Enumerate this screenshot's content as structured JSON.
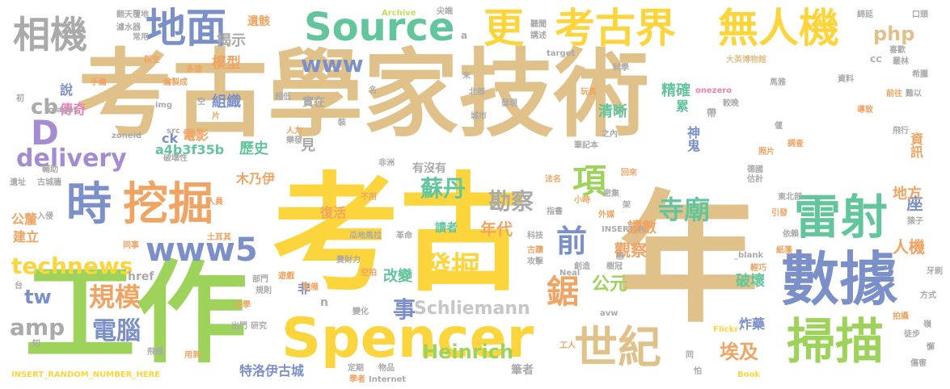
{
  "palette": {
    "tan": "#dfc189",
    "gold": "#fcd43c",
    "green": "#9ed35b",
    "blue": "#7b8fc8",
    "orange": "#f0a463",
    "teal": "#62c59c",
    "grey": "#aaaaaa",
    "pink": "#e880b6",
    "light_grey": "#c6c6c6",
    "lavender": "#a58cd2",
    "yellow_green": "#c8da5a"
  },
  "words": [
    {
      "text": "考古學家技術",
      "color": "tan",
      "size": 118
    },
    {
      "text": "考古",
      "color": "gold",
      "size": 158
    },
    {
      "text": "工作",
      "color": "green",
      "size": 138
    },
    {
      "text": "年",
      "color": "tan",
      "size": 175
    },
    {
      "text": "Spencer",
      "color": "gold",
      "size": 68
    },
    {
      "text": "數據",
      "color": "blue",
      "size": 72
    },
    {
      "text": "雷射",
      "color": "teal",
      "size": 58
    },
    {
      "text": "掃描",
      "color": "green",
      "size": 60
    },
    {
      "text": "挖掘",
      "color": "orange",
      "size": 56
    },
    {
      "text": "時",
      "color": "blue",
      "size": 56
    },
    {
      "text": "世紀",
      "color": "tan",
      "size": 54
    },
    {
      "text": "地面",
      "color": "blue",
      "size": 50
    },
    {
      "text": "Source",
      "color": "teal",
      "size": 48
    },
    {
      "text": "更",
      "color": "gold",
      "size": 50
    },
    {
      "text": "考古界",
      "color": "gold",
      "size": 50
    },
    {
      "text": "無人機",
      "color": "gold",
      "size": 50
    },
    {
      "text": "相機",
      "color": "grey",
      "size": 46
    },
    {
      "text": "php",
      "color": "tan",
      "size": 24
    },
    {
      "text": "D",
      "color": "lavender",
      "size": 42
    },
    {
      "text": "www",
      "color": "blue",
      "size": 28
    },
    {
      "text": "delivery",
      "color": "lavender",
      "size": 30
    },
    {
      "text": "cb",
      "color": "grey",
      "size": 26
    },
    {
      "text": "www5",
      "color": "blue",
      "size": 40
    },
    {
      "text": "technews",
      "color": "gold",
      "size": 28
    },
    {
      "text": "tw",
      "color": "blue",
      "size": 24
    },
    {
      "text": "amp",
      "color": "grey",
      "size": 28
    },
    {
      "text": "規模",
      "color": "orange",
      "size": 32
    },
    {
      "text": "電腦",
      "color": "blue",
      "size": 30
    },
    {
      "text": "發掘",
      "color": "gold",
      "size": 36
    },
    {
      "text": "鋸",
      "color": "orange",
      "size": 40
    },
    {
      "text": "前",
      "color": "blue",
      "size": 38
    },
    {
      "text": "項",
      "color": "green",
      "size": 42
    },
    {
      "text": "寺廟",
      "color": "teal",
      "size": 32
    },
    {
      "text": "蘇丹",
      "color": "teal",
      "size": 28
    },
    {
      "text": "勘察",
      "color": "grey",
      "size": 28
    },
    {
      "text": "公元",
      "color": "green",
      "size": 22
    },
    {
      "text": "事",
      "color": "blue",
      "size": 28
    },
    {
      "text": "埃及",
      "color": "orange",
      "size": 24
    },
    {
      "text": "Heinrich",
      "color": "green",
      "size": 24
    },
    {
      "text": "Schliemann",
      "color": "light_grey",
      "size": 22
    },
    {
      "text": "特洛伊古城",
      "color": "blue",
      "size": 16
    },
    {
      "text": "觀察",
      "color": "orange",
      "size": 20
    },
    {
      "text": "讀數",
      "color": "orange",
      "size": 18
    },
    {
      "text": "年代",
      "color": "orange",
      "size": 20
    },
    {
      "text": "改變",
      "color": "teal",
      "size": 18
    },
    {
      "text": "破壞",
      "color": "teal",
      "size": 18
    },
    {
      "text": "炸藥",
      "color": "blue",
      "size": 16
    },
    {
      "text": "人機",
      "color": "orange",
      "size": 20
    },
    {
      "text": "座",
      "color": "blue",
      "size": 20
    },
    {
      "text": "地方",
      "color": "orange",
      "size": 18
    },
    {
      "text": "資訊",
      "color": "orange",
      "size": 16
    },
    {
      "text": "神鬼",
      "color": "blue",
      "size": 16
    },
    {
      "text": "清晰",
      "color": "teal",
      "size": 18
    },
    {
      "text": "精確",
      "color": "teal",
      "size": 18
    },
    {
      "text": "累",
      "color": "teal",
      "size": 16
    },
    {
      "text": "組織",
      "color": "blue",
      "size": 18
    },
    {
      "text": "模型",
      "color": "orange",
      "size": 18
    },
    {
      "text": "歷史",
      "color": "teal",
      "size": 18
    },
    {
      "text": "電影",
      "color": "orange",
      "size": 16
    },
    {
      "text": "ck",
      "color": "blue",
      "size": 16
    },
    {
      "text": "a4b3f35b",
      "color": "teal",
      "size": 16
    },
    {
      "text": "木乃伊",
      "color": "orange",
      "size": 16
    },
    {
      "text": "復活",
      "color": "orange",
      "size": 16
    },
    {
      "text": "有沒有",
      "color": "grey",
      "size": 14
    },
    {
      "text": "公釐",
      "color": "orange",
      "size": 16
    },
    {
      "text": "建立",
      "color": "orange",
      "size": 16
    },
    {
      "text": "讀者",
      "color": "teal",
      "size": 14
    },
    {
      "text": "非",
      "color": "blue",
      "size": 16
    },
    {
      "text": "遺骸",
      "color": "orange",
      "size": 14
    },
    {
      "text": "揭示",
      "color": "grey",
      "size": 18
    },
    {
      "text": "傳奇",
      "color": "pink",
      "size": 16
    },
    {
      "text": "說",
      "color": "blue",
      "size": 16
    },
    {
      "text": "實在",
      "color": "grey",
      "size": 14
    },
    {
      "text": "見",
      "color": "grey",
      "size": 18
    },
    {
      "text": "筆者",
      "color": "grey",
      "size": 14
    },
    {
      "text": "href",
      "color": "grey",
      "size": 14
    },
    {
      "text": "n",
      "color": "grey",
      "size": 14
    },
    {
      "text": "大英博物館",
      "color": "tan",
      "size": 10
    },
    {
      "text": "Archive",
      "color": "yellow_green",
      "size": 10
    },
    {
      "text": "Internet",
      "color": "grey",
      "size": 10
    },
    {
      "text": "target",
      "color": "grey",
      "size": 10
    },
    {
      "text": "onezero",
      "color": "pink",
      "size": 10
    },
    {
      "text": "Images",
      "color": "grey",
      "size": 10
    },
    {
      "text": "img",
      "color": "grey",
      "size": 10
    },
    {
      "text": "zoneid",
      "color": "grey",
      "size": 10
    },
    {
      "text": "src",
      "color": "grey",
      "size": 10
    },
    {
      "text": "INSERT_RANDOM_NUMBER_HERE",
      "color": "gold",
      "size": 10
    },
    {
      "text": "INSERT_R",
      "color": "grey",
      "size": 10
    },
    {
      "text": "_blank",
      "color": "grey",
      "size": 10
    },
    {
      "text": "Neal",
      "color": "grey",
      "size": 10
    },
    {
      "text": "Flickr",
      "color": "gold",
      "size": 10
    },
    {
      "text": "Book",
      "color": "gold",
      "size": 10
    },
    {
      "text": "avw",
      "color": "grey",
      "size": 10
    },
    {
      "text": "CC",
      "color": "grey",
      "size": 10
    },
    {
      "text": "a",
      "color": "grey",
      "size": 12
    },
    {
      "text": "翻天覆地",
      "color": "grey",
      "size": 10
    },
    {
      "text": "濾水器",
      "color": "grey",
      "size": 10
    },
    {
      "text": "常用",
      "color": "grey",
      "size": 10
    },
    {
      "text": "新生",
      "color": "orange",
      "size": 10
    },
    {
      "text": "多達",
      "color": "orange",
      "size": 10
    },
    {
      "text": "繪製成",
      "color": "orange",
      "size": 10
    },
    {
      "text": "手繪",
      "color": "orange",
      "size": 10
    },
    {
      "text": "初",
      "color": "grey",
      "size": 10
    },
    {
      "text": "超低",
      "color": "grey",
      "size": 10
    },
    {
      "text": "空",
      "color": "grey",
      "size": 10
    },
    {
      "text": "片",
      "color": "orange",
      "size": 10
    },
    {
      "text": "破壞性",
      "color": "grey",
      "size": 10
    },
    {
      "text": "古城牆",
      "color": "grey",
      "size": 10
    },
    {
      "text": "輔助",
      "color": "grey",
      "size": 10
    },
    {
      "text": "遺址",
      "color": "grey",
      "size": 10
    },
    {
      "text": "入侵",
      "color": "grey",
      "size": 10
    },
    {
      "text": "人員",
      "color": "orange",
      "size": 10
    },
    {
      "text": "土耳其",
      "color": "orange",
      "size": 10
    },
    {
      "text": "同事",
      "color": "orange",
      "size": 10
    },
    {
      "text": "部門",
      "color": "grey",
      "size": 10
    },
    {
      "text": "規則",
      "color": "grey",
      "size": 10
    },
    {
      "text": "遊戲",
      "color": "orange",
      "size": 10
    },
    {
      "text": "配備",
      "color": "orange",
      "size": 10
    },
    {
      "text": "光學",
      "color": "orange",
      "size": 10
    },
    {
      "text": "出門",
      "color": "grey",
      "size": 10
    },
    {
      "text": "研究",
      "color": "grey",
      "size": 10
    },
    {
      "text": "飛機",
      "color": "grey",
      "size": 10
    },
    {
      "text": "用到",
      "color": "orange",
      "size": 10
    },
    {
      "text": "學者",
      "color": "orange",
      "size": 10
    },
    {
      "text": "定期",
      "color": "grey",
      "size": 10
    },
    {
      "text": "物品",
      "color": "grey",
      "size": 10
    },
    {
      "text": "瓜地馬拉",
      "color": "grey",
      "size": 10
    },
    {
      "text": "革命",
      "color": "grey",
      "size": 10
    },
    {
      "text": "費財力",
      "color": "grey",
      "size": 10
    },
    {
      "text": "空拍",
      "color": "orange",
      "size": 10
    },
    {
      "text": "科技",
      "color": "grey",
      "size": 10
    },
    {
      "text": "變化",
      "color": "grey",
      "size": 10
    },
    {
      "text": "人力",
      "color": "orange",
      "size": 10
    },
    {
      "text": "樂發",
      "color": "grey",
      "size": 10
    },
    {
      "text": "非洲",
      "color": "grey",
      "size": 10
    },
    {
      "text": "不用",
      "color": "orange",
      "size": 10
    },
    {
      "text": "法名",
      "color": "orange",
      "size": 10
    },
    {
      "text": "北部",
      "color": "grey",
      "size": 10
    },
    {
      "text": "發現",
      "color": "grey",
      "size": 10
    },
    {
      "text": "城市",
      "color": "grey",
      "size": 10
    },
    {
      "text": "玩具",
      "color": "orange",
      "size": 10
    },
    {
      "text": "之內",
      "color": "grey",
      "size": 10
    },
    {
      "text": "筆記本",
      "color": "grey",
      "size": 10
    },
    {
      "text": "科學",
      "color": "grey",
      "size": 10
    },
    {
      "text": "馬雅",
      "color": "grey",
      "size": 10
    },
    {
      "text": "較晚",
      "color": "grey",
      "size": 10
    },
    {
      "text": "照片",
      "color": "orange",
      "size": 10
    },
    {
      "text": "德國",
      "color": "grey",
      "size": 10
    },
    {
      "text": "估計",
      "color": "grey",
      "size": 10
    },
    {
      "text": "東北部",
      "color": "grey",
      "size": 10
    },
    {
      "text": "引發",
      "color": "orange",
      "size": 10
    },
    {
      "text": "依賴",
      "color": "grey",
      "size": 10
    },
    {
      "text": "回來",
      "color": "orange",
      "size": 10
    },
    {
      "text": "密集",
      "color": "grey",
      "size": 10
    },
    {
      "text": "外媒",
      "color": "orange",
      "size": 10
    },
    {
      "text": "指書",
      "color": "grey",
      "size": 10
    },
    {
      "text": "小時",
      "color": "orange",
      "size": 10
    },
    {
      "text": "架",
      "color": "grey",
      "size": 10
    },
    {
      "text": "想",
      "color": "grey",
      "size": 10
    },
    {
      "text": "創造",
      "color": "grey",
      "size": 10
    },
    {
      "text": "樹冠",
      "color": "grey",
      "size": 10
    },
    {
      "text": "古蹟",
      "color": "orange",
      "size": 10
    },
    {
      "text": "攻擊",
      "color": "grey",
      "size": 10
    },
    {
      "text": "工人",
      "color": "orange",
      "size": 10
    },
    {
      "text": "同",
      "color": "grey",
      "size": 10
    },
    {
      "text": "怕",
      "color": "grey",
      "size": 10
    },
    {
      "text": "帶",
      "color": "grey",
      "size": 12
    },
    {
      "text": "偃",
      "color": "grey",
      "size": 10
    },
    {
      "text": "飛行",
      "color": "grey",
      "size": 10
    },
    {
      "text": "調查",
      "color": "orange",
      "size": 10
    },
    {
      "text": "導致",
      "color": "orange",
      "size": 10
    },
    {
      "text": "資料",
      "color": "grey",
      "size": 10
    },
    {
      "text": "前往",
      "color": "orange",
      "size": 10
    },
    {
      "text": "難以",
      "color": "grey",
      "size": 10
    },
    {
      "text": "叢林",
      "color": "grey",
      "size": 10
    },
    {
      "text": "希臘",
      "color": "grey",
      "size": 10
    },
    {
      "text": "喜歡",
      "color": "grey",
      "size": 10
    },
    {
      "text": "口頭",
      "color": "grey",
      "size": 10
    },
    {
      "text": "綿延",
      "color": "grey",
      "size": 10
    },
    {
      "text": "聽聞",
      "color": "grey",
      "size": 10
    },
    {
      "text": "講述",
      "color": "grey",
      "size": 10
    },
    {
      "text": "尖端",
      "color": "grey",
      "size": 10
    },
    {
      "text": "名",
      "color": "grey",
      "size": 10
    },
    {
      "text": "末",
      "color": "grey",
      "size": 10
    },
    {
      "text": "裝",
      "color": "grey",
      "size": 10
    },
    {
      "text": "嶺",
      "color": "grey",
      "size": 10
    },
    {
      "text": "猿子",
      "color": "grey",
      "size": 10
    },
    {
      "text": "牙刷",
      "color": "grey",
      "size": 10
    },
    {
      "text": "方式",
      "color": "grey",
      "size": 10
    },
    {
      "text": "拍攝",
      "color": "orange",
      "size": 10
    },
    {
      "text": "徒步",
      "color": "grey",
      "size": 10
    },
    {
      "text": "懈",
      "color": "grey",
      "size": 10
    },
    {
      "text": "傷害",
      "color": "grey",
      "size": 10
    },
    {
      "text": "台",
      "color": "grey",
      "size": 10
    },
    {
      "text": "知",
      "color": "grey",
      "size": 10
    },
    {
      "text": "紙箋",
      "color": "orange",
      "size": 10
    },
    {
      "text": "輕巧",
      "color": "orange",
      "size": 10
    }
  ]
}
